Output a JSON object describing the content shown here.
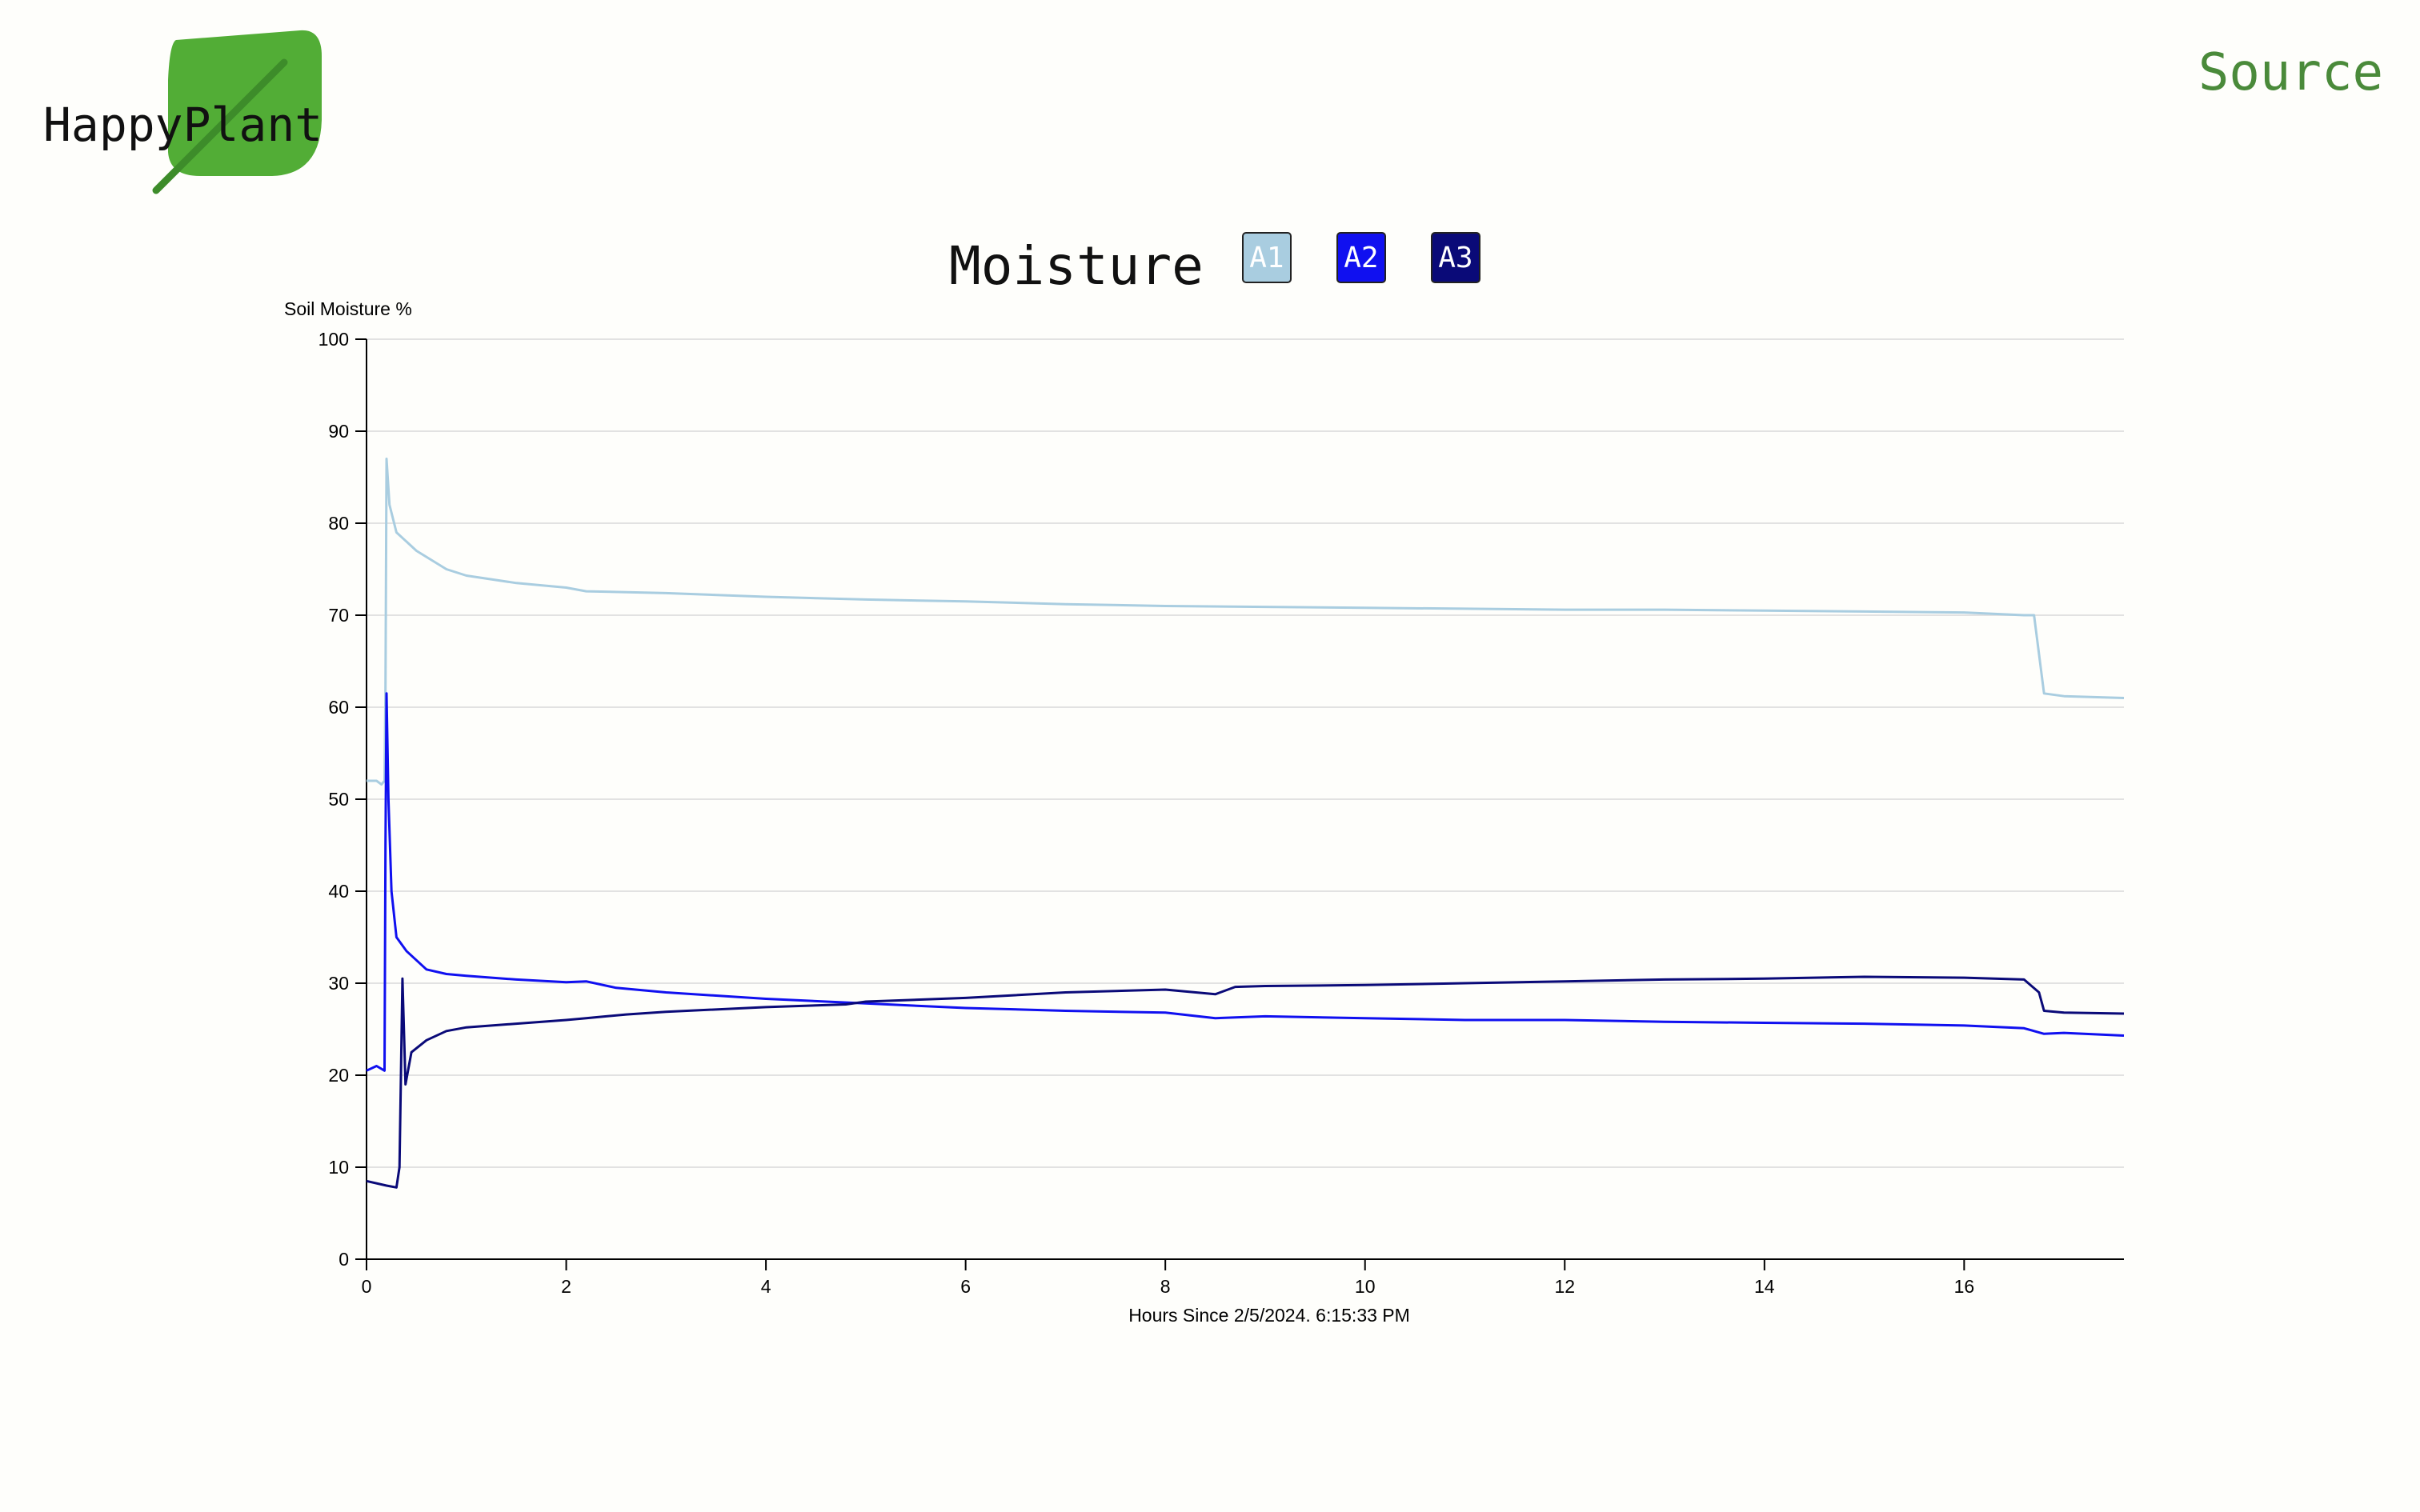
{
  "brand": {
    "name": "HappyPlant",
    "leaf_color": "#52ad36",
    "stem_color": "#3d8c2a"
  },
  "header": {
    "source_label": "Source",
    "source_color": "#4a8a3a"
  },
  "chart_data": {
    "type": "line",
    "title": "Moisture",
    "ylabel": "Soil Moisture %",
    "xlabel": "Hours Since 2/5/2024. 6:15:33 PM",
    "xlim": [
      0,
      17.6
    ],
    "ylim": [
      0,
      100
    ],
    "x_ticks": [
      0,
      2,
      4,
      6,
      8,
      10,
      12,
      14,
      16
    ],
    "y_ticks": [
      0,
      10,
      20,
      30,
      40,
      50,
      60,
      70,
      80,
      90,
      100
    ],
    "grid": true,
    "legend": "top-center",
    "series": [
      {
        "name": "A1",
        "color": "#a9cde0",
        "points": [
          [
            0,
            52
          ],
          [
            0.1,
            52
          ],
          [
            0.15,
            51.6
          ],
          [
            0.18,
            52
          ],
          [
            0.19,
            62
          ],
          [
            0.2,
            87
          ],
          [
            0.23,
            82
          ],
          [
            0.3,
            79
          ],
          [
            0.5,
            77
          ],
          [
            0.8,
            75
          ],
          [
            1,
            74.3
          ],
          [
            1.5,
            73.5
          ],
          [
            2,
            73
          ],
          [
            2.2,
            72.6
          ],
          [
            3,
            72.4
          ],
          [
            4,
            72
          ],
          [
            5,
            71.7
          ],
          [
            6,
            71.5
          ],
          [
            7,
            71.2
          ],
          [
            8,
            71
          ],
          [
            9,
            70.9
          ],
          [
            10,
            70.8
          ],
          [
            11,
            70.7
          ],
          [
            12,
            70.6
          ],
          [
            13,
            70.6
          ],
          [
            14,
            70.5
          ],
          [
            15,
            70.4
          ],
          [
            16,
            70.3
          ],
          [
            16.6,
            70
          ],
          [
            16.7,
            70
          ],
          [
            16.8,
            61.5
          ],
          [
            17,
            61.2
          ],
          [
            17.6,
            61
          ]
        ]
      },
      {
        "name": "A2",
        "color": "#1010f0",
        "points": [
          [
            0,
            20.5
          ],
          [
            0.1,
            21
          ],
          [
            0.18,
            20.5
          ],
          [
            0.19,
            45
          ],
          [
            0.2,
            61.5
          ],
          [
            0.22,
            50
          ],
          [
            0.25,
            40
          ],
          [
            0.3,
            35
          ],
          [
            0.4,
            33.5
          ],
          [
            0.6,
            31.5
          ],
          [
            0.8,
            31
          ],
          [
            1,
            30.8
          ],
          [
            1.5,
            30.4
          ],
          [
            2,
            30.1
          ],
          [
            2.2,
            30.2
          ],
          [
            2.5,
            29.5
          ],
          [
            3,
            29
          ],
          [
            4,
            28.3
          ],
          [
            5,
            27.8
          ],
          [
            6,
            27.3
          ],
          [
            7,
            27
          ],
          [
            8,
            26.8
          ],
          [
            8.5,
            26.2
          ],
          [
            9,
            26.4
          ],
          [
            10,
            26.2
          ],
          [
            11,
            26
          ],
          [
            12,
            26
          ],
          [
            13,
            25.8
          ],
          [
            14,
            25.7
          ],
          [
            15,
            25.6
          ],
          [
            16,
            25.4
          ],
          [
            16.6,
            25.1
          ],
          [
            16.8,
            24.5
          ],
          [
            17,
            24.6
          ],
          [
            17.6,
            24.3
          ]
        ]
      },
      {
        "name": "A3",
        "color": "#0a0a78",
        "points": [
          [
            0,
            8.5
          ],
          [
            0.2,
            8
          ],
          [
            0.3,
            7.8
          ],
          [
            0.33,
            10
          ],
          [
            0.36,
            30.5
          ],
          [
            0.39,
            19
          ],
          [
            0.45,
            22.5
          ],
          [
            0.6,
            23.8
          ],
          [
            0.8,
            24.8
          ],
          [
            1,
            25.2
          ],
          [
            1.5,
            25.6
          ],
          [
            2,
            26
          ],
          [
            2.2,
            26.2
          ],
          [
            2.6,
            26.6
          ],
          [
            3,
            26.9
          ],
          [
            4,
            27.4
          ],
          [
            4.8,
            27.7
          ],
          [
            5,
            28
          ],
          [
            6,
            28.4
          ],
          [
            7,
            29
          ],
          [
            8,
            29.3
          ],
          [
            8.5,
            28.8
          ],
          [
            8.7,
            29.6
          ],
          [
            9,
            29.7
          ],
          [
            10,
            29.8
          ],
          [
            11,
            30
          ],
          [
            12,
            30.2
          ],
          [
            13,
            30.4
          ],
          [
            14,
            30.5
          ],
          [
            15,
            30.7
          ],
          [
            16,
            30.6
          ],
          [
            16.6,
            30.4
          ],
          [
            16.75,
            29
          ],
          [
            16.8,
            27
          ],
          [
            17,
            26.8
          ],
          [
            17.6,
            26.7
          ]
        ]
      }
    ]
  }
}
